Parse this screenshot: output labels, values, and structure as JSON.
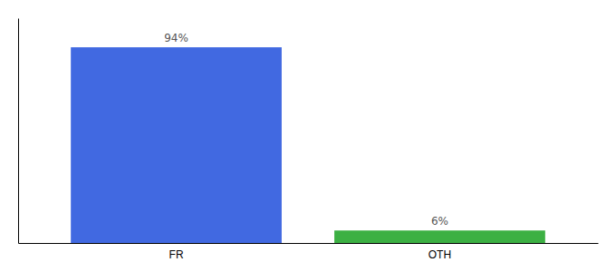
{
  "chart_data": {
    "type": "bar",
    "categories": [
      "FR",
      "OTH"
    ],
    "values": [
      94,
      6
    ],
    "value_labels": [
      "94%",
      "6%"
    ],
    "colors": [
      "#4169e1",
      "#3cb043"
    ],
    "ylim": [
      0,
      108
    ],
    "data_labels": true,
    "tick_labels": "x"
  }
}
